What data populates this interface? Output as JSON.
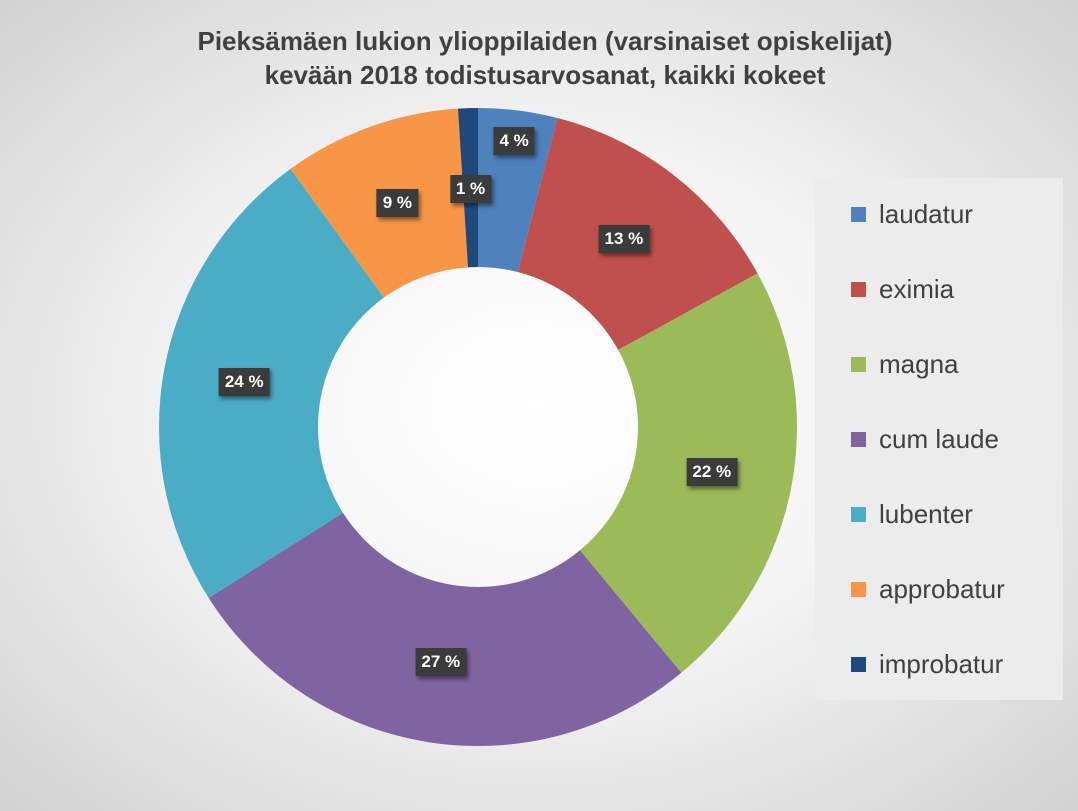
{
  "chart_data": {
    "type": "pie",
    "subtype": "donut",
    "title": [
      "Pieksämäen lukion ylioppilaiden (varsinaiset opiskelijat)",
      "kevään 2018 todistusarvosanat, kaikki kokeet"
    ],
    "categories": [
      "laudatur",
      "eximia",
      "magna",
      "cum laude",
      "lubenter",
      "approbatur",
      "improbatur"
    ],
    "values": [
      4,
      13,
      22,
      27,
      24,
      9,
      1
    ],
    "data_labels": [
      "4 %",
      "13 %",
      "22 %",
      "27 %",
      "24 %",
      "9 %",
      "1 %"
    ],
    "colors": [
      "#4f81bd",
      "#c0504d",
      "#9bbb59",
      "#8064a2",
      "#4bacc6",
      "#f79646",
      "#1f497d"
    ],
    "legend_position": "right"
  }
}
